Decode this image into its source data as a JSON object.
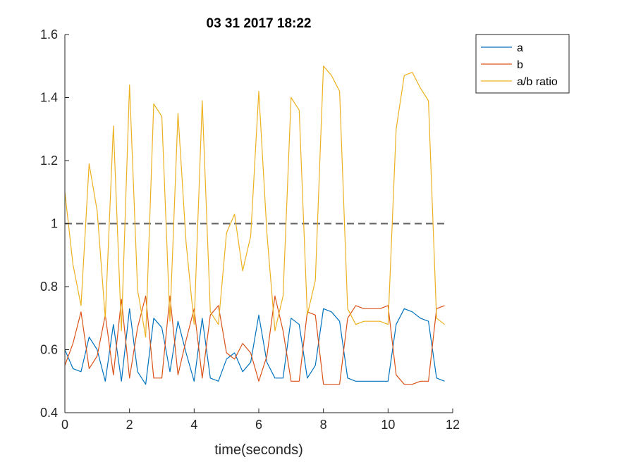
{
  "chart_data": {
    "type": "line",
    "title": "03 31 2017 18:22",
    "xlabel": "time(seconds)",
    "ylabel": "",
    "xlim": [
      0,
      12
    ],
    "ylim": [
      0.4,
      1.6
    ],
    "xticks": [
      0,
      2,
      4,
      6,
      8,
      10,
      12
    ],
    "yticks": [
      0.4,
      0.6,
      0.8,
      1,
      1.2,
      1.4,
      1.6
    ],
    "xtick_labels": [
      "0",
      "2",
      "4",
      "6",
      "8",
      "10",
      "12"
    ],
    "ytick_labels": [
      "0.4",
      "0.6",
      "0.8",
      "1",
      "1.2",
      "1.4",
      "1.6"
    ],
    "grid": false,
    "legend_position": "outside-top-right",
    "reference_line": {
      "y": 1,
      "style": "dashed",
      "color": "#606060"
    },
    "series": [
      {
        "name": "a",
        "color": "#0072BD",
        "x": [
          0,
          0.25,
          0.5,
          0.75,
          1,
          1.25,
          1.5,
          1.75,
          2,
          2.25,
          2.5,
          2.75,
          3,
          3.25,
          3.5,
          3.75,
          4,
          4.25,
          4.5,
          4.75,
          5,
          5.25,
          5.5,
          5.75,
          6,
          6.25,
          6.5,
          6.75,
          7,
          7.25,
          7.5,
          7.75,
          8,
          8.25,
          8.5,
          8.75,
          9,
          9.25,
          9.5,
          9.75,
          10,
          10.25,
          10.5,
          10.75,
          11,
          11.25,
          11.5,
          11.75
        ],
        "values": [
          0.6,
          0.54,
          0.53,
          0.64,
          0.6,
          0.5,
          0.68,
          0.5,
          0.73,
          0.53,
          0.49,
          0.7,
          0.67,
          0.53,
          0.69,
          0.59,
          0.5,
          0.7,
          0.51,
          0.5,
          0.57,
          0.59,
          0.53,
          0.56,
          0.71,
          0.56,
          0.51,
          0.51,
          0.7,
          0.68,
          0.51,
          0.55,
          0.73,
          0.72,
          0.69,
          0.51,
          0.5,
          0.5,
          0.5,
          0.5,
          0.5,
          0.68,
          0.73,
          0.72,
          0.7,
          0.69,
          0.51,
          0.5
        ]
      },
      {
        "name": "b",
        "color": "#D95319",
        "x": [
          0,
          0.25,
          0.5,
          0.75,
          1,
          1.25,
          1.5,
          1.75,
          2,
          2.25,
          2.5,
          2.75,
          3,
          3.25,
          3.5,
          3.75,
          4,
          4.25,
          4.5,
          4.75,
          5,
          5.25,
          5.5,
          5.75,
          6,
          6.25,
          6.5,
          6.75,
          7,
          7.25,
          7.5,
          7.75,
          8,
          8.25,
          8.5,
          8.75,
          9,
          9.25,
          9.5,
          9.75,
          10,
          10.25,
          10.5,
          10.75,
          11,
          11.25,
          11.5,
          11.75
        ],
        "values": [
          0.55,
          0.62,
          0.72,
          0.54,
          0.58,
          0.71,
          0.52,
          0.76,
          0.51,
          0.67,
          0.77,
          0.51,
          0.51,
          0.77,
          0.52,
          0.63,
          0.73,
          0.51,
          0.71,
          0.74,
          0.59,
          0.57,
          0.62,
          0.59,
          0.5,
          0.58,
          0.77,
          0.66,
          0.5,
          0.5,
          0.72,
          0.71,
          0.49,
          0.49,
          0.49,
          0.7,
          0.74,
          0.73,
          0.73,
          0.73,
          0.74,
          0.52,
          0.49,
          0.49,
          0.5,
          0.5,
          0.73,
          0.74
        ]
      },
      {
        "name": "a/b ratio",
        "color": "#EDB120",
        "x": [
          0,
          0.25,
          0.5,
          0.75,
          1,
          1.25,
          1.5,
          1.75,
          2,
          2.25,
          2.5,
          2.75,
          3,
          3.25,
          3.5,
          3.75,
          4,
          4.25,
          4.5,
          4.75,
          5,
          5.25,
          5.5,
          5.75,
          6,
          6.25,
          6.5,
          6.75,
          7,
          7.25,
          7.5,
          7.75,
          8,
          8.25,
          8.5,
          8.75,
          9,
          9.25,
          9.5,
          9.75,
          10,
          10.25,
          10.5,
          10.75,
          11,
          11.25,
          11.5,
          11.75
        ],
        "values": [
          1.1,
          0.87,
          0.74,
          1.19,
          1.04,
          0.7,
          1.31,
          0.66,
          1.44,
          0.79,
          0.64,
          1.38,
          1.34,
          0.69,
          1.35,
          0.94,
          0.68,
          1.39,
          0.72,
          0.68,
          0.97,
          1.03,
          0.85,
          0.96,
          1.42,
          0.97,
          0.66,
          0.77,
          1.4,
          1.36,
          0.71,
          0.82,
          1.5,
          1.47,
          1.42,
          0.73,
          0.68,
          0.69,
          0.69,
          0.69,
          0.68,
          1.3,
          1.47,
          1.48,
          1.43,
          1.39,
          0.7,
          0.68
        ]
      }
    ]
  }
}
